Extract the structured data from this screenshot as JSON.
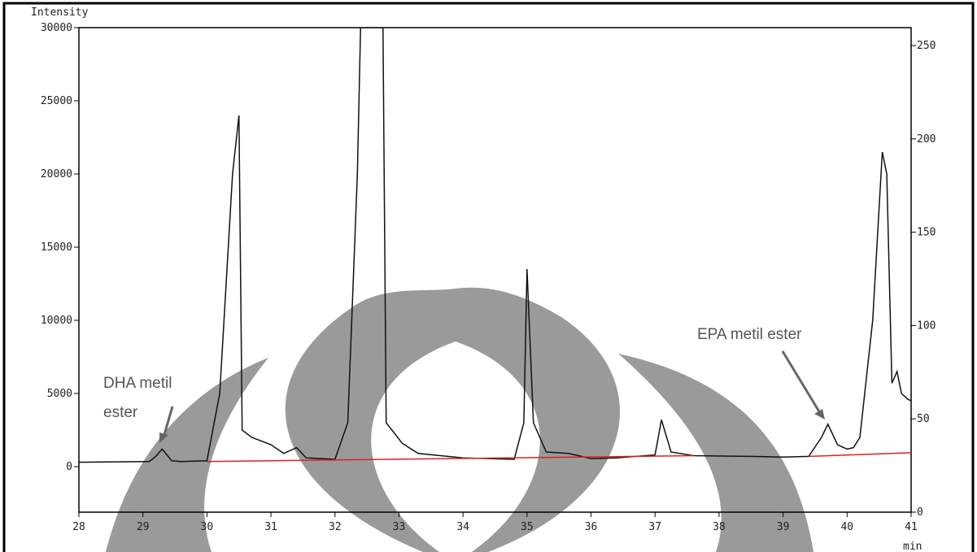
{
  "chart_data": {
    "type": "line",
    "title": "Intensity",
    "x_label": "min",
    "series": [
      {
        "color": "#111111",
        "x": [
          28,
          29.1,
          29.2,
          29.3,
          29.45,
          29.6,
          30.0,
          30.2,
          30.4,
          30.45,
          30.5,
          30.55,
          30.7,
          31.0,
          31.2,
          31.4,
          31.55,
          32.0,
          32.2,
          32.35,
          32.4,
          32.75,
          32.8,
          33.05,
          33.3,
          34.0,
          34.8,
          34.95,
          35.0,
          35.1,
          35.3,
          35.65,
          36.0,
          36.4,
          37.0,
          37.1,
          37.25,
          37.6,
          38.5,
          39.0,
          39.4,
          39.6,
          39.7,
          39.85,
          40.0,
          40.1,
          40.2,
          40.4,
          40.55,
          40.62,
          40.7,
          40.78,
          40.85,
          40.95,
          41
        ],
        "values": [
          300,
          350,
          700,
          1200,
          400,
          350,
          400,
          5000,
          20000,
          22000,
          24000,
          2500,
          2000,
          1500,
          900,
          1300,
          600,
          500,
          3000,
          20000,
          30000,
          30000,
          3000,
          1600,
          900,
          600,
          500,
          3000,
          13500,
          3000,
          1000,
          900,
          550,
          600,
          800,
          3200,
          1000,
          750,
          700,
          650,
          700,
          2000,
          2900,
          1500,
          1200,
          1300,
          2000,
          10000,
          21500,
          20000,
          5700,
          6500,
          5000,
          4600,
          4500
        ]
      },
      {
        "color": "#e02020",
        "x": [
          30,
          37.6,
          38.5,
          39.4,
          41
        ],
        "values": [
          350,
          750,
          null,
          700,
          950
        ]
      }
    ],
    "xlim": [
      28,
      41
    ],
    "xticks": [
      28,
      29,
      30,
      31,
      32,
      33,
      34,
      35,
      36,
      37,
      38,
      39,
      40,
      41
    ],
    "ylim": [
      -3111,
      30000
    ],
    "yticks": [
      0,
      5000,
      10000,
      15000,
      20000,
      25000,
      30000
    ],
    "y2lim": [
      0,
      259.6
    ],
    "y2ticks": [
      0,
      50,
      100,
      150,
      200,
      250
    ],
    "annotations": [
      {
        "text": "DHA metil ester",
        "x": 29.3,
        "y": 1200
      },
      {
        "text": "EPA metil ester",
        "x": 39.7,
        "y": 2900
      }
    ]
  }
}
